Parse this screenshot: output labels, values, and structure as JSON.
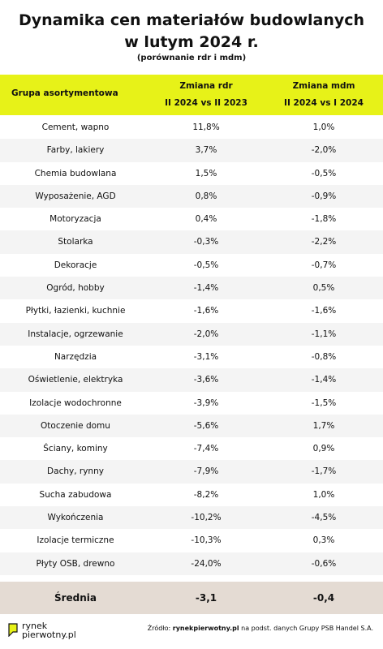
{
  "title_line1": "Dynamika cen materiałów budowlanych",
  "title_line2": "w lutym 2024 r.",
  "subtitle": "(porównanie rdr i mdm)",
  "header": {
    "group": "Grupa asortymentowa",
    "col_rdr_1": "Zmiana rdr",
    "col_rdr_2": "II 2024 vs II 2023",
    "col_mdm_1": "Zmiana mdm",
    "col_mdm_2": "II 2024 vs I 2024"
  },
  "rows": [
    {
      "name": "Cement, wapno",
      "rdr": "11,8%",
      "mdm": "1,0%"
    },
    {
      "name": "Farby, lakiery",
      "rdr": "3,7%",
      "mdm": "-2,0%"
    },
    {
      "name": "Chemia budowlana",
      "rdr": "1,5%",
      "mdm": "-0,5%"
    },
    {
      "name": "Wyposażenie, AGD",
      "rdr": "0,8%",
      "mdm": "-0,9%"
    },
    {
      "name": "Motoryzacja",
      "rdr": "0,4%",
      "mdm": "-1,8%"
    },
    {
      "name": "Stolarka",
      "rdr": "-0,3%",
      "mdm": "-2,2%"
    },
    {
      "name": "Dekoracje",
      "rdr": "-0,5%",
      "mdm": "-0,7%"
    },
    {
      "name": "Ogród, hobby",
      "rdr": "-1,4%",
      "mdm": "0,5%"
    },
    {
      "name": "Płytki, łazienki, kuchnie",
      "rdr": "-1,6%",
      "mdm": "-1,6%"
    },
    {
      "name": "Instalacje, ogrzewanie",
      "rdr": "-2,0%",
      "mdm": "-1,1%"
    },
    {
      "name": "Narzędzia",
      "rdr": "-3,1%",
      "mdm": "-0,8%"
    },
    {
      "name": "Oświetlenie, elektryka",
      "rdr": "-3,6%",
      "mdm": "-1,4%"
    },
    {
      "name": "Izolacje wodochronne",
      "rdr": "-3,9%",
      "mdm": "-1,5%"
    },
    {
      "name": "Otoczenie domu",
      "rdr": "-5,6%",
      "mdm": "1,7%"
    },
    {
      "name": "Ściany, kominy",
      "rdr": "-7,4%",
      "mdm": "0,9%"
    },
    {
      "name": "Dachy, rynny",
      "rdr": "-7,9%",
      "mdm": "-1,7%"
    },
    {
      "name": "Sucha zabudowa",
      "rdr": "-8,2%",
      "mdm": "1,0%"
    },
    {
      "name": "Wykończenia",
      "rdr": "-10,2%",
      "mdm": "-4,5%"
    },
    {
      "name": "Izolacje termiczne",
      "rdr": "-10,3%",
      "mdm": "0,3%"
    },
    {
      "name": "Płyty OSB, drewno",
      "rdr": "-24,0%",
      "mdm": "-0,6%"
    }
  ],
  "average": {
    "name": "Średnia",
    "rdr": "-3,1",
    "mdm": "-0,4"
  },
  "footer": {
    "logo_line1": "rynek",
    "logo_line2": "pierwotny",
    "logo_suffix": ".pl",
    "source_prefix": "Źródło: ",
    "source_site": "rynekpierwotny.pl",
    "source_rest": " na podst. danych Grupy PSB Handel S.A."
  },
  "colors": {
    "header_bg": "#e7f218",
    "avg_bg": "#e4dbd3",
    "stripe_bg": "#f4f4f4",
    "logo_accent": "#e7f218"
  }
}
